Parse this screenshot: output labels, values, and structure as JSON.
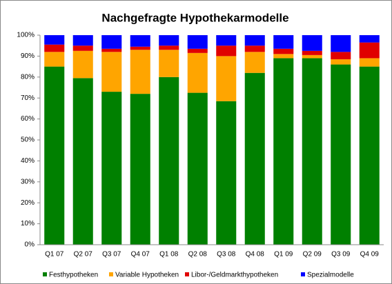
{
  "chart_data": {
    "type": "stacked_bar",
    "title": "Nachgefragte Hypothekarmodelle",
    "categories": [
      "Q1 07",
      "Q2 07",
      "Q3 07",
      "Q4 07",
      "Q1 08",
      "Q2 08",
      "Q3 08",
      "Q4 08",
      "Q1 09",
      "Q2 09",
      "Q3 09",
      "Q4 09"
    ],
    "series": [
      {
        "name": "Festhypotheken",
        "color": "#008000",
        "values": [
          85,
          79.5,
          73,
          72,
          80,
          72.5,
          68.5,
          82,
          89,
          89,
          86,
          85
        ]
      },
      {
        "name": "Variable Hypotheken",
        "color": "#ffa500",
        "values": [
          7,
          13,
          19,
          21,
          13,
          19,
          21.5,
          10,
          2,
          1.5,
          2.5,
          4
        ]
      },
      {
        "name": "Libor-/Geldmarkthypotheken",
        "color": "#e00000",
        "values": [
          3.5,
          2.5,
          1.5,
          1.5,
          2,
          2,
          5,
          3,
          2.5,
          2,
          3.5,
          7.5
        ]
      },
      {
        "name": "Spezialmodelle",
        "color": "#0000ff",
        "values": [
          4.5,
          5,
          6.5,
          5.5,
          5,
          6.5,
          5,
          5,
          6.5,
          7.5,
          8,
          3.5
        ]
      }
    ],
    "ylim": [
      0,
      100
    ],
    "yticks": [
      {
        "value": 0,
        "label": "0%"
      },
      {
        "value": 10,
        "label": "10%"
      },
      {
        "value": 20,
        "label": "20%"
      },
      {
        "value": 30,
        "label": "30%"
      },
      {
        "value": 40,
        "label": "40%"
      },
      {
        "value": 50,
        "label": "50%"
      },
      {
        "value": 60,
        "label": "60%"
      },
      {
        "value": 70,
        "label": "70%"
      },
      {
        "value": 80,
        "label": "80%"
      },
      {
        "value": 90,
        "label": "90%"
      },
      {
        "value": 100,
        "label": "100%"
      }
    ],
    "legend": "bottom"
  }
}
